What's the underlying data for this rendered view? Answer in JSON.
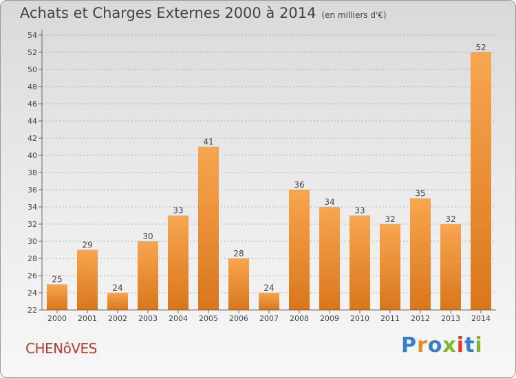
{
  "header": {
    "title": "Achats et Charges Externes 2000 à 2014",
    "subtitle": "(en milliers d'€)"
  },
  "footer": {
    "commune": "CHENôVES",
    "logo": "Proxiti"
  },
  "colors": {
    "bar_top": "#f7a650",
    "bar_bottom": "#d9761c",
    "text": "#444444",
    "commune": "#c0392b",
    "logo_letters": [
      "#3a7ec8",
      "#f08a1c",
      "#3a7ec8",
      "#7cb82f",
      "#e23a2a",
      "#3a7ec8",
      "#7cb82f"
    ]
  },
  "chart_data": {
    "type": "bar",
    "title": "Achats et Charges Externes 2000 à 2014",
    "subtitle": "(en milliers d'€)",
    "categories": [
      "2000",
      "2001",
      "2002",
      "2003",
      "2004",
      "2005",
      "2006",
      "2007",
      "2008",
      "2009",
      "2010",
      "2011",
      "2012",
      "2013",
      "2014"
    ],
    "values": [
      25,
      29,
      24,
      30,
      33,
      41,
      28,
      24,
      36,
      34,
      33,
      32,
      35,
      32,
      52
    ],
    "ylim": [
      22,
      54
    ],
    "yticks": [
      22,
      24,
      26,
      28,
      30,
      32,
      34,
      36,
      38,
      40,
      42,
      44,
      46,
      48,
      50,
      52,
      54
    ],
    "grid": "horizontal-dashed",
    "xlabel": "",
    "ylabel": ""
  }
}
